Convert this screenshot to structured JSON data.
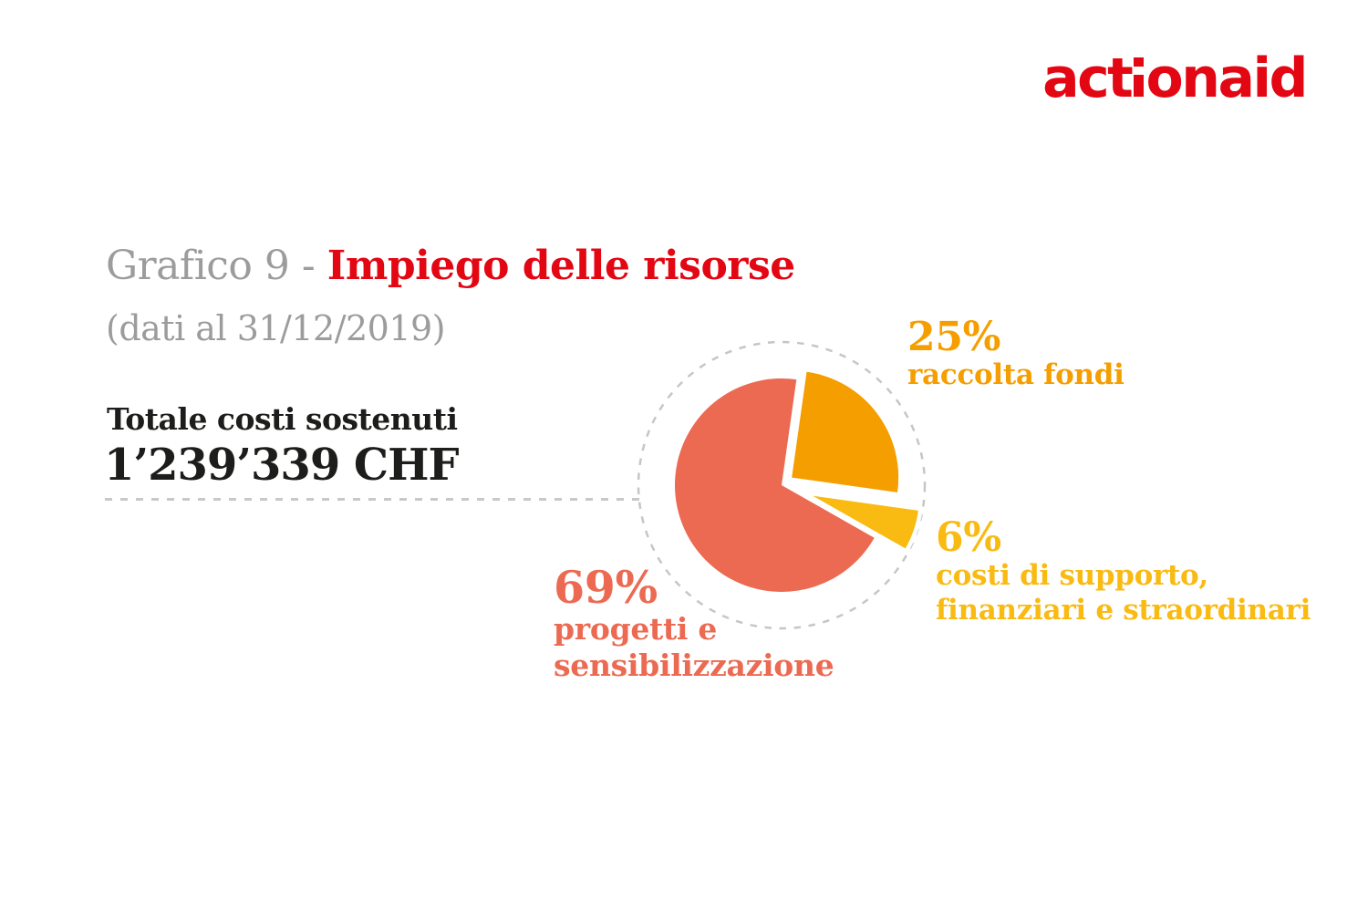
{
  "brand": {
    "text_before_i": "act",
    "text_after_i": "onaid",
    "color": "#e30613"
  },
  "header": {
    "title_prefix": "Grafico 9 - ",
    "title_main": "Impiego delle risorse",
    "title_color": "#e30613",
    "subtitle": "(dati al 31/12/2019)"
  },
  "totals": {
    "label": "Totale costi sostenuti",
    "value": "1’239’339 CHF"
  },
  "chart_data": {
    "type": "pie",
    "title": "Grafico 9 - Impiego delle risorse",
    "subtitle": "(dati al 31/12/2019)",
    "total_label": "Totale costi sostenuti",
    "total_value": "1’239’339 CHF",
    "unit": "%",
    "start_angle_deg": 8,
    "radius": 117,
    "slice_gap_stroke": 9,
    "guide_circle": {
      "radius": 157,
      "color": "#c7c6c6",
      "style": "dashed"
    },
    "legend_position": "around",
    "slices": [
      {
        "label": "raccolta fondi",
        "value": 25,
        "pct_label": "25%",
        "color": "#f59e00",
        "explode": 14,
        "label_lines": [
          "raccolta fondi"
        ]
      },
      {
        "label": "costi di supporto, finanziari e straordinari",
        "value": 6,
        "pct_label": "6%",
        "color": "#f9ba12",
        "explode": 36,
        "label_lines": [
          "costi di supporto,",
          "finanziari e straordinari"
        ]
      },
      {
        "label": "progetti e sensibilizzazione",
        "value": 69,
        "pct_label": "69%",
        "color": "#ec6a52",
        "explode": 0,
        "label_lines": [
          "progetti e",
          "sensibilizzazione"
        ]
      }
    ]
  }
}
